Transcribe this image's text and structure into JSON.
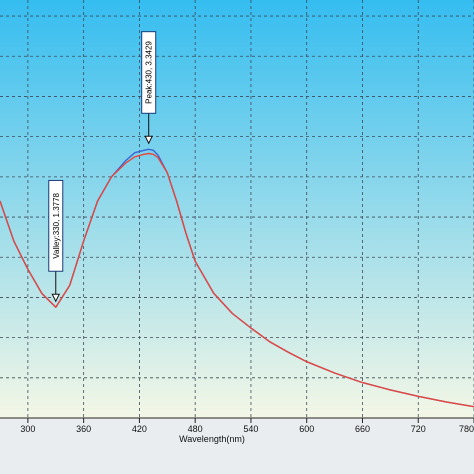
{
  "chart_data": {
    "type": "line",
    "title": "",
    "xlabel": "Wavelength(nm)",
    "ylabel": "",
    "xlim": [
      270,
      780
    ],
    "ylim": [
      0,
      5.2
    ],
    "x_ticks": [
      "300",
      "360",
      "420",
      "480",
      "540",
      "600",
      "660",
      "720",
      "780"
    ],
    "grid": true,
    "background": {
      "top": "#35bdf0",
      "bottom": "#f4f7e6"
    },
    "series": [
      {
        "color": "#3a64d8",
        "x": [
          270,
          285,
          300,
          315,
          330,
          345,
          360,
          375,
          390,
          405,
          415,
          425,
          430,
          435,
          440,
          450,
          460,
          470,
          480,
          500,
          520,
          540,
          560,
          580,
          600,
          630,
          660,
          690,
          720,
          750,
          780
        ],
        "y": [
          2.7,
          2.2,
          1.85,
          1.55,
          1.378,
          1.65,
          2.2,
          2.7,
          3.0,
          3.2,
          3.3,
          3.33,
          3.343,
          3.33,
          3.27,
          3.05,
          2.7,
          2.3,
          1.95,
          1.55,
          1.3,
          1.12,
          0.95,
          0.82,
          0.7,
          0.56,
          0.44,
          0.35,
          0.27,
          0.2,
          0.14
        ]
      },
      {
        "color": "#e8463a",
        "x": [
          270,
          285,
          300,
          315,
          330,
          345,
          360,
          375,
          390,
          405,
          415,
          425,
          430,
          435,
          440,
          450,
          460,
          470,
          480,
          500,
          520,
          540,
          560,
          580,
          600,
          630,
          660,
          690,
          720,
          750,
          780
        ],
        "y": [
          2.7,
          2.2,
          1.85,
          1.55,
          1.378,
          1.65,
          2.2,
          2.7,
          3.0,
          3.17,
          3.25,
          3.28,
          3.29,
          3.28,
          3.24,
          3.05,
          2.7,
          2.3,
          1.95,
          1.55,
          1.3,
          1.12,
          0.95,
          0.82,
          0.7,
          0.56,
          0.44,
          0.35,
          0.27,
          0.2,
          0.14
        ]
      }
    ],
    "annotations": [
      {
        "label": "Peak:430, 3.3429",
        "x": 430,
        "y": 3.3429,
        "kind": "peak"
      },
      {
        "label": "Valley:330, 1.3778",
        "x": 330,
        "y": 1.3778,
        "kind": "valley"
      }
    ]
  }
}
